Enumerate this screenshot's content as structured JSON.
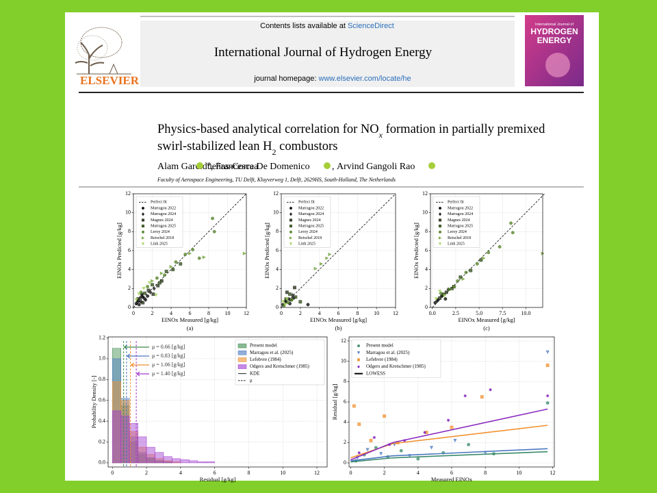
{
  "header": {
    "contents_prefix": "Contents lists available at ",
    "contents_link": "ScienceDirect",
    "journal": "International Journal of Hydrogen Energy",
    "homepage_prefix": "journal homepage: ",
    "homepage_link": "www.elsevier.com/locate/he",
    "publisher": "ELSEVIER",
    "cover_line1": "International Journal of",
    "cover_line2": "HYDROGEN",
    "cover_line3": "ENERGY"
  },
  "paper": {
    "title": [
      "Physics-based analytical correlation for NO",
      "x",
      " formation in partially premixed",
      "swirl-stabilized lean H",
      "2",
      " combustors"
    ],
    "authors": [
      "Alam Garcidueñas-Correa",
      "Francesca De Domenico",
      "Arvind Gangoli Rao"
    ],
    "author_separator": ", ",
    "corresponding_mark": "*",
    "affiliation": "Faculty of Aerospace Engineering, TU Delft, Kluyverweg 1, Delft, 2629HS, South-Holland, The Netherlands"
  },
  "chart_data": [
    {
      "type": "scatter",
      "caption": "(a)",
      "xlabel": "EINOx Measured [g/kg]",
      "ylabel": "EINOx Predicted [g/kg]",
      "xlim": [
        0,
        12
      ],
      "ylim": [
        0,
        12
      ],
      "xticks": [
        0,
        2,
        4,
        6,
        8,
        10,
        12
      ],
      "yticks": [
        0,
        2,
        4,
        6,
        8,
        10,
        12
      ],
      "grid": true,
      "legend": "upper left",
      "reference_line": {
        "name": "Perfect fit",
        "x": [
          0,
          12
        ],
        "y": [
          0,
          12
        ]
      },
      "series": [
        {
          "name": "Marragou 2022",
          "color": "#000000",
          "marker": "circle",
          "x": [
            0.3,
            0.5,
            0.8,
            1.0,
            1.2,
            0.6,
            0.9,
            1.5
          ],
          "values": [
            0.4,
            0.7,
            0.6,
            1.1,
            0.9,
            0.3,
            1.4,
            1.2
          ]
        },
        {
          "name": "Marragou 2024",
          "color": "#111111",
          "marker": "diamond",
          "x": [
            0.4,
            0.9,
            1.3,
            1.8,
            2.2,
            0.7
          ],
          "values": [
            0.6,
            1.2,
            0.8,
            1.6,
            2.0,
            1.0
          ]
        },
        {
          "name": "Magnes 2024",
          "color": "#1f2a14",
          "marker": "square",
          "x": [
            0.5,
            1.0,
            1.6,
            2.1,
            2.6,
            3.0
          ],
          "values": [
            0.9,
            0.5,
            1.8,
            1.4,
            2.3,
            2.8
          ]
        },
        {
          "name": "Marragou 2025",
          "color": "#2f4a1a",
          "marker": "square",
          "x": [
            1.2,
            2.0,
            2.8,
            3.5,
            4.2,
            5.0
          ],
          "values": [
            1.5,
            2.4,
            2.6,
            3.8,
            4.0,
            4.6
          ]
        },
        {
          "name": "Leroy 2024",
          "color": "#4f7d22",
          "marker": "circle",
          "x": [
            0.8,
            1.5,
            2.5,
            3.3,
            4.5,
            5.5,
            6.3,
            7.0,
            8.4,
            8.6
          ],
          "values": [
            1.6,
            2.2,
            3.1,
            3.4,
            4.8,
            5.6,
            6.1,
            5.2,
            9.4,
            8.0
          ]
        },
        {
          "name": "Reischel 2018",
          "color": "#6a9e2e",
          "marker": "triangle-right",
          "x": [
            2.0,
            3.0,
            4.0,
            6.0,
            7.5,
            11.8
          ],
          "values": [
            2.8,
            3.6,
            4.3,
            5.7,
            5.3,
            5.7
          ]
        },
        {
          "name": "Link 2025",
          "color": "#a3d05c",
          "marker": "triangle-down",
          "x": [
            0.3,
            0.6,
            1.1,
            1.7,
            2.4
          ],
          "values": [
            0.8,
            1.4,
            2.0,
            2.6,
            1.3
          ]
        }
      ]
    },
    {
      "type": "scatter",
      "caption": "(b)",
      "xlabel": "EINOx Measured [g/kg]",
      "ylabel": "EINOx Predicted [g/kg]",
      "xlim": [
        0,
        12
      ],
      "ylim": [
        0,
        12
      ],
      "xticks": [
        0,
        2,
        4,
        6,
        8,
        10,
        12
      ],
      "yticks": [
        0,
        2,
        4,
        6,
        8,
        10,
        12
      ],
      "grid": true,
      "legend": "upper left",
      "reference_line": {
        "name": "Perfect fit",
        "x": [
          0,
          12
        ],
        "y": [
          0,
          12
        ]
      },
      "series": [
        {
          "name": "Marragou 2022",
          "color": "#000000",
          "marker": "circle",
          "x": [
            0.2,
            0.5,
            0.9,
            1.3,
            2.8
          ],
          "values": [
            0.3,
            0.6,
            0.4,
            1.0,
            0.3
          ]
        },
        {
          "name": "Marragou 2024",
          "color": "#111111",
          "marker": "diamond",
          "x": [
            0.4,
            0.8,
            1.2
          ],
          "values": [
            0.7,
            0.9,
            1.3
          ]
        },
        {
          "name": "Magnes 2024",
          "color": "#1f2a14",
          "marker": "square",
          "x": [
            0.6,
            1.0,
            1.4
          ],
          "values": [
            1.6,
            0.8,
            2.1
          ]
        },
        {
          "name": "Marragou 2025",
          "color": "#2f4a1a",
          "marker": "square",
          "x": [
            0.5,
            0.9,
            1.5,
            2.0
          ],
          "values": [
            0.9,
            1.4,
            1.1,
            0.6
          ]
        },
        {
          "name": "Leroy 2024",
          "color": "#4f7d22",
          "marker": "circle",
          "x": [
            0.3,
            0.7,
            1.1
          ],
          "values": [
            0.2,
            0.5,
            0.8
          ]
        },
        {
          "name": "Reischel 2018",
          "color": "#6a9e2e",
          "marker": "triangle-right",
          "x": [
            3.6,
            4.2,
            4.8,
            5.1
          ],
          "values": [
            4.1,
            4.6,
            5.2,
            5.6
          ]
        },
        {
          "name": "Link 2025",
          "color": "#a3d05c",
          "marker": "triangle-down",
          "x": [
            0.2,
            0.4,
            0.6
          ],
          "values": [
            0.6,
            0.3,
            0.9
          ]
        }
      ]
    },
    {
      "type": "scatter",
      "caption": "(c)",
      "xlabel": "EINOx Measured [g/kg]",
      "ylabel": "EINOx Predicted [g/kg]",
      "xlim": [
        -0.2,
        11.8
      ],
      "ylim": [
        0,
        12
      ],
      "xticks": [
        {
          "value": 0,
          "label": "0.0"
        },
        2.5,
        {
          "value": 5,
          "label": "5.0"
        },
        7.5,
        {
          "value": 10,
          "label": "10.0"
        }
      ],
      "yticks": [
        0,
        2,
        4,
        6,
        8,
        10,
        12
      ],
      "grid": true,
      "legend": "upper left",
      "reference_line": {
        "name": "Perfect fit",
        "x": [
          0,
          12
        ],
        "y": [
          0,
          12
        ]
      },
      "series": [
        {
          "name": "Marragou 2022",
          "color": "#000000",
          "marker": "circle",
          "x": [
            0.3,
            0.6,
            1.0,
            1.4
          ],
          "values": [
            0.5,
            0.8,
            1.2,
            0.9
          ]
        },
        {
          "name": "Marragou 2024",
          "color": "#111111",
          "marker": "diamond",
          "x": [
            0.5,
            1.1,
            1.7
          ],
          "values": [
            0.7,
            1.3,
            1.9
          ]
        },
        {
          "name": "Magnes 2024",
          "color": "#1f2a14",
          "marker": "square",
          "x": [
            0.8,
            1.5,
            2.3
          ],
          "values": [
            1.0,
            1.6,
            2.2
          ]
        },
        {
          "name": "Marragou 2025",
          "color": "#2f4a1a",
          "marker": "square",
          "x": [
            1.2,
            2.1,
            3.0,
            4.1,
            5.2
          ],
          "values": [
            1.4,
            2.0,
            3.2,
            3.9,
            5.0
          ]
        },
        {
          "name": "Leroy 2024",
          "color": "#4f7d22",
          "marker": "circle",
          "x": [
            0.9,
            1.8,
            2.7,
            3.6,
            4.8,
            6.0,
            7.2,
            8.4,
            8.6
          ],
          "values": [
            1.5,
            1.9,
            2.8,
            3.7,
            4.6,
            5.8,
            6.4,
            8.9,
            7.9
          ]
        },
        {
          "name": "Reischel 2018",
          "color": "#6a9e2e",
          "marker": "triangle-right",
          "x": [
            2.4,
            3.3,
            5.5,
            11.8
          ],
          "values": [
            2.2,
            3.0,
            5.2,
            5.7
          ]
        },
        {
          "name": "Link 2025",
          "color": "#a3d05c",
          "marker": "triangle-down",
          "x": [
            0.4,
            0.8,
            1.3
          ],
          "values": [
            0.9,
            1.7,
            1.2
          ]
        }
      ]
    },
    {
      "type": "histogram",
      "xlabel": "Residual [g/kg]",
      "ylabel": "Probability Density [-]",
      "xlim": [
        -0.25,
        12.6
      ],
      "ylim": [
        -0.04,
        1.21
      ],
      "xticks": [
        0,
        2,
        4,
        6,
        8,
        10,
        12
      ],
      "yticks": [
        {
          "value": 0,
          "label": "0.0"
        },
        0.2,
        0.4,
        0.6,
        0.8,
        {
          "value": 1,
          "label": "1.0"
        },
        1.2
      ],
      "grid": true,
      "legend": "upper right",
      "kde_label": "KDE",
      "mean_legend": "μ",
      "bins": [
        0,
        0.5,
        1,
        1.5,
        2,
        2.5,
        3,
        3.5,
        4,
        4.5,
        5,
        5.5,
        6,
        6.5,
        7
      ],
      "series": [
        {
          "name": "Present model",
          "color": "#3a8a4a",
          "values": [
            1.1,
            0.55,
            0.2,
            0.08,
            0.04,
            0.02,
            0.01,
            0,
            0,
            0,
            0,
            0,
            0,
            0
          ],
          "mean": 0.66,
          "mean_label": "μ = 0.66 [g/kg]"
        },
        {
          "name": "Marragou et al. (2025)",
          "color": "#4a78c0",
          "values": [
            1.0,
            0.62,
            0.25,
            0.1,
            0.05,
            0.02,
            0.01,
            0,
            0,
            0,
            0,
            0,
            0,
            0
          ],
          "mean": 0.83,
          "mean_label": "μ = 0.83 [g/kg]"
        },
        {
          "name": "Lefebvre (1984)",
          "color": "#f0912f",
          "values": [
            0.78,
            0.6,
            0.3,
            0.15,
            0.08,
            0.04,
            0.02,
            0.01,
            0,
            0,
            0,
            0,
            0,
            0
          ],
          "mean": 1.06,
          "mean_label": "μ = 1.06 [g/kg]"
        },
        {
          "name": "Odgers and Kretschmer (1985)",
          "color": "#a03ad0",
          "values": [
            0.5,
            0.45,
            0.38,
            0.25,
            0.15,
            0.1,
            0.06,
            0.04,
            0.03,
            0.02,
            0.01,
            0.01,
            0,
            0
          ],
          "mean": 1.4,
          "mean_label": "μ = 1.40 [g/kg]"
        }
      ]
    },
    {
      "type": "scatter",
      "xlabel": "Measured EINOx",
      "ylabel": "Residual [g/kg]",
      "xlim": [
        -0.1,
        12.1
      ],
      "ylim": [
        -0.4,
        12.4
      ],
      "xticks": [
        0,
        2,
        4,
        6,
        8,
        10,
        12
      ],
      "yticks": [
        0,
        2,
        4,
        6,
        8,
        10,
        12
      ],
      "grid": true,
      "legend": "upper left",
      "lowess_label": "LOWESS",
      "series": [
        {
          "name": "Present model",
          "color": "#3a8a6a",
          "marker": "circle",
          "x": [
            0.3,
            0.8,
            1.5,
            2.2,
            3.0,
            4.0,
            5.5,
            7.0,
            8.5,
            11.7
          ],
          "values": [
            0.2,
            0.8,
            1.5,
            0.6,
            1.2,
            0.4,
            1.0,
            1.8,
            0.9,
            5.9
          ],
          "lowess": {
            "x": [
              0,
              2.5,
              11.7
            ],
            "y": [
              0.1,
              0.5,
              1.1
            ]
          }
        },
        {
          "name": "Marragou et al. (2025)",
          "color": "#4a78c0",
          "marker": "triangle-down",
          "x": [
            0.4,
            1.0,
            1.8,
            2.6,
            3.5,
            4.8,
            6.2,
            8.0,
            11.7
          ],
          "values": [
            0.5,
            1.3,
            0.9,
            1.8,
            0.7,
            1.5,
            2.2,
            1.0,
            10.9
          ],
          "lowess": {
            "x": [
              0,
              2.5,
              11.7
            ],
            "y": [
              0.2,
              0.7,
              1.4
            ]
          }
        },
        {
          "name": "Lefebvre (1984)",
          "color": "#f0912f",
          "marker": "square",
          "x": [
            0.2,
            0.5,
            1.2,
            2.0,
            2.8,
            4.5,
            6.0,
            7.8,
            11.7
          ],
          "values": [
            5.6,
            3.8,
            2.2,
            4.6,
            2.0,
            3.0,
            3.5,
            6.5,
            9.6
          ],
          "lowess": {
            "x": [
              0,
              2.5,
              11.7
            ],
            "y": [
              0.5,
              1.9,
              3.7
            ]
          }
        },
        {
          "name": "Odgers and Kretschmer (1985)",
          "color": "#8a2ac0",
          "marker": "star",
          "x": [
            0.5,
            1.4,
            2.3,
            3.2,
            4.4,
            5.8,
            6.8,
            8.3,
            11.7
          ],
          "values": [
            1.0,
            2.5,
            1.8,
            2.2,
            3.0,
            4.2,
            6.6,
            7.2,
            6.6
          ],
          "lowess": {
            "x": [
              0,
              2.5,
              11.7
            ],
            "y": [
              0.3,
              2.0,
              5.3
            ]
          }
        }
      ]
    }
  ]
}
